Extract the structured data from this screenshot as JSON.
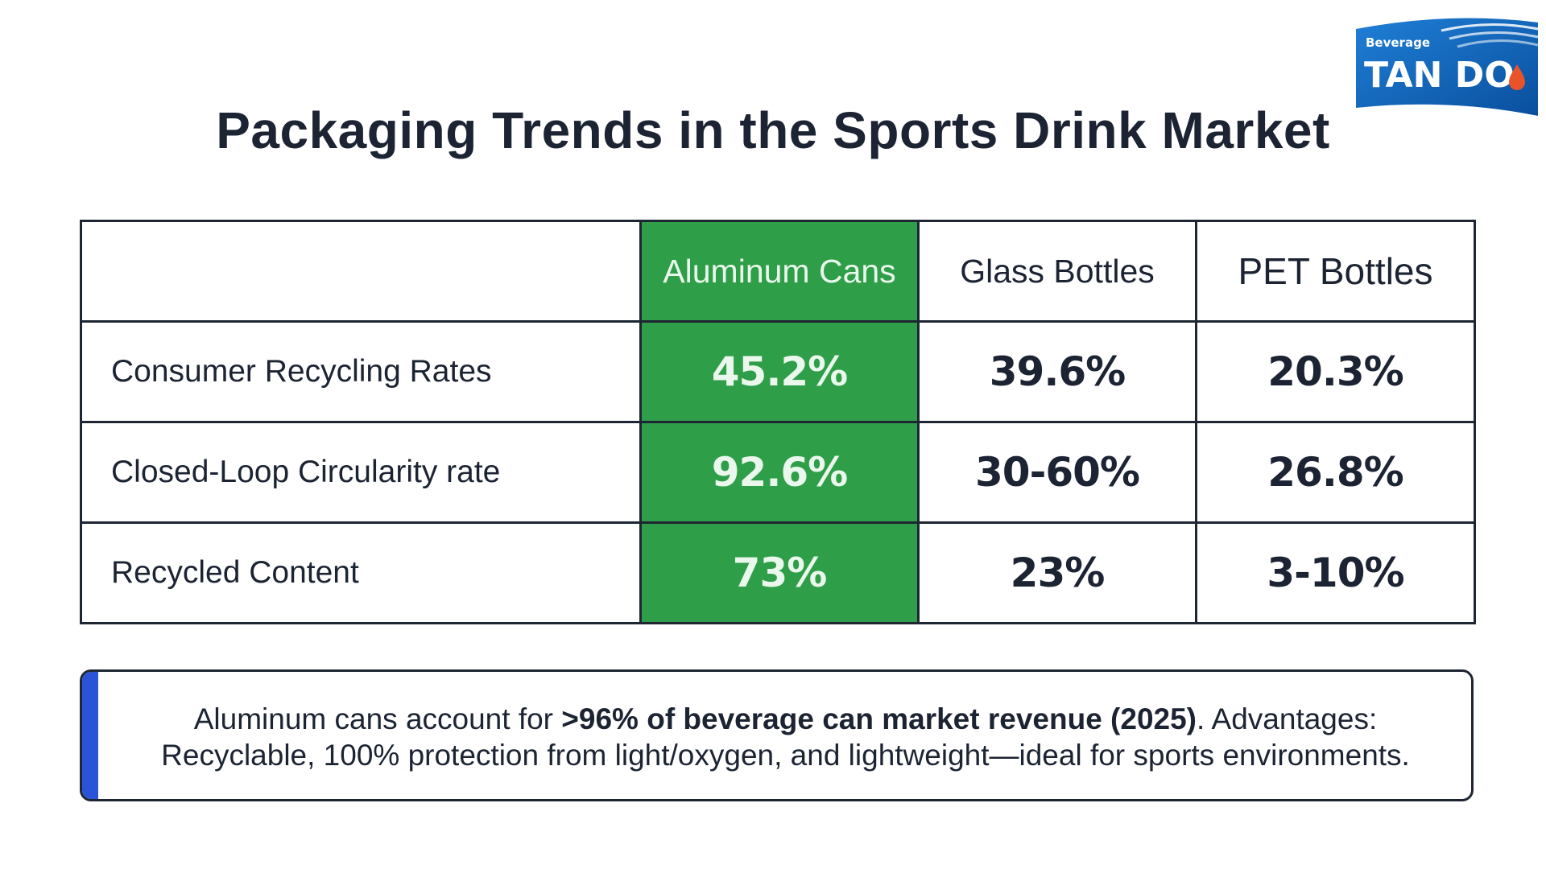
{
  "logo": {
    "small_text": "Beverage",
    "brand_text": "TAN DO",
    "colors": {
      "primary": "#0a5cad",
      "accent": "#e8532a"
    }
  },
  "title": "Packaging Trends in the Sports Drink Market",
  "table": {
    "columns": [
      "",
      "Aluminum Cans",
      "Glass Bottles",
      "PET Bottles"
    ],
    "rows": [
      {
        "label": "Consumer Recycling Rates",
        "values": [
          "45.2%",
          "39.6%",
          "20.3%"
        ]
      },
      {
        "label": "Closed-Loop Circularity rate",
        "values": [
          "92.6%",
          "30-60%",
          "26.8%"
        ]
      },
      {
        "label": "Recycled Content",
        "values": [
          "73%",
          "23%",
          "3-10%"
        ]
      }
    ],
    "highlight_color": "#2f9e48"
  },
  "callout": {
    "part1": "Aluminum cans account for ",
    "bold": ">96% of beverage can market revenue (2025)",
    "part2": ". Advantages:",
    "line2": "Recyclable, 100% protection from light/oxygen, and lightweight—ideal for sports environments.",
    "accent_color": "#2b53d8"
  }
}
